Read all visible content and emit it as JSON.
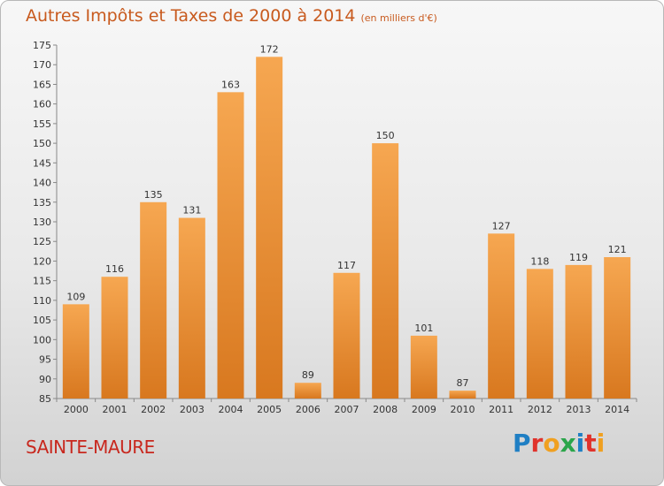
{
  "header": {
    "title": "Autres Impôts et Taxes de 2000 à 2014",
    "subtitle": "(en milliers d'€)"
  },
  "footer": {
    "place": "SAINTE-MAURE",
    "logo_text": "Proxiti",
    "logo_colors": [
      "#1f7fc4",
      "#e0322b",
      "#f0a020",
      "#2aa54a",
      "#1f7fc4",
      "#e0322b",
      "#f0a020"
    ]
  },
  "colors": {
    "bar_light": "#f6a751",
    "bar_dark": "#d8781f",
    "title": "#c85a1e",
    "place": "#c8281e"
  },
  "chart_data": {
    "type": "bar",
    "title": "Autres Impôts et Taxes de 2000 à 2014",
    "subtitle": "(en milliers d'€)",
    "categories": [
      "2000",
      "2001",
      "2002",
      "2003",
      "2004",
      "2005",
      "2006",
      "2007",
      "2008",
      "2009",
      "2010",
      "2011",
      "2012",
      "2013",
      "2014"
    ],
    "values": [
      109,
      116,
      135,
      131,
      163,
      172,
      89,
      117,
      150,
      101,
      87,
      127,
      118,
      119,
      121
    ],
    "ylim": [
      85,
      175
    ],
    "yticks": [
      85,
      90,
      95,
      100,
      105,
      110,
      115,
      120,
      125,
      130,
      135,
      140,
      145,
      150,
      155,
      160,
      165,
      170,
      175
    ],
    "xlabel": "",
    "ylabel": "",
    "grid": false,
    "data_labels": true
  }
}
